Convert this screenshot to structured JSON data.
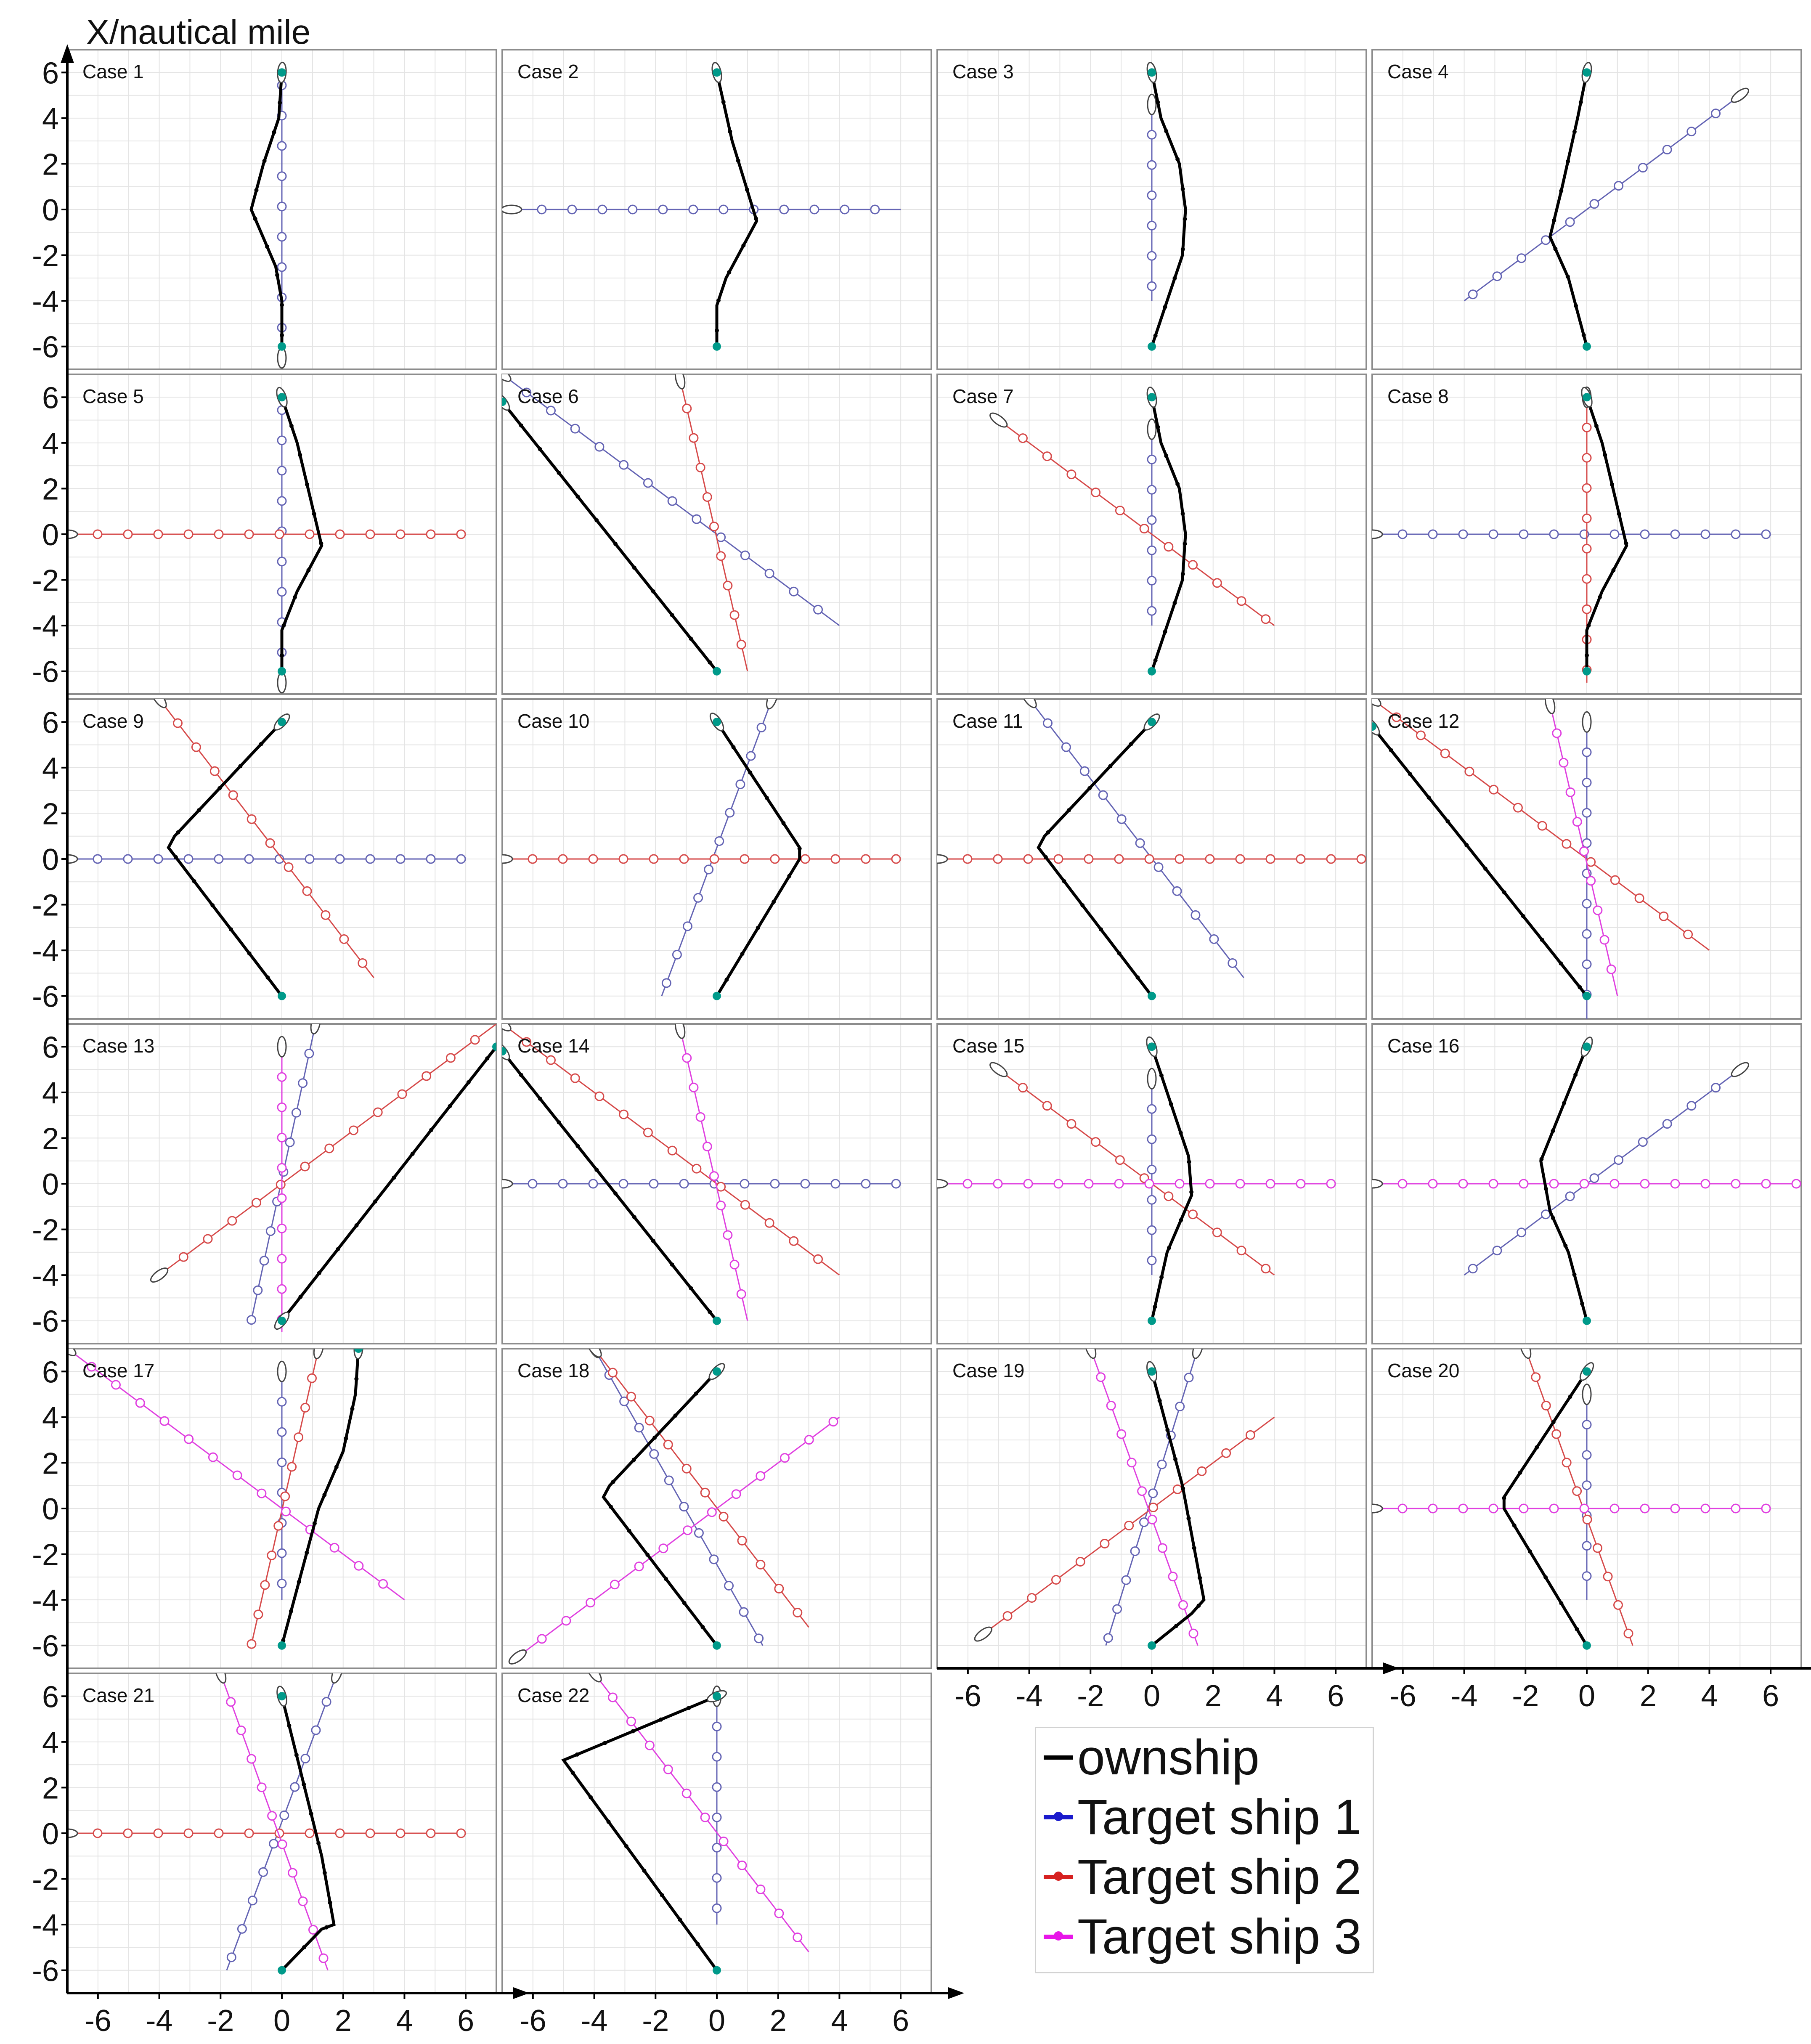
{
  "y_axis_title": "X/nautical mile",
  "legend": [
    {
      "label": "ownship",
      "color": "#000000"
    },
    {
      "label": "Target ship 1",
      "color": "#1a1acc"
    },
    {
      "label": "Target ship 2",
      "color": "#d62020"
    },
    {
      "label": "Target ship 3",
      "color": "#e815e8"
    }
  ],
  "colors": {
    "ownship": "#000000",
    "target1": "#6464b4",
    "target2": "#d64a4a",
    "target3": "#e040e0",
    "start": "#009a8a",
    "grid": "#e4e4e4"
  },
  "axis_ticks": {
    "x": [
      "-6",
      "-4",
      "-2",
      "0",
      "2",
      "4",
      "6"
    ],
    "y": [
      "6",
      "4",
      "2",
      "0",
      "-2",
      "-4",
      "-6"
    ]
  },
  "chart_data": {
    "type": "line",
    "xlim": [
      -7,
      7
    ],
    "ylim": [
      -7,
      7
    ],
    "grid": true,
    "legend_position": "bottom-right",
    "point_format": "[horizontal axis value, X/nautical mile]",
    "panels": [
      {
        "label": "Case 1",
        "ownship": [
          [
            0,
            6
          ],
          [
            -0.1,
            4
          ],
          [
            -0.6,
            2
          ],
          [
            -1,
            0
          ],
          [
            -0.2,
            -2.5
          ],
          [
            0,
            -4
          ],
          [
            0,
            -6
          ]
        ],
        "target1": [
          [
            0,
            -6.5
          ],
          [
            0,
            5.5
          ]
        ]
      },
      {
        "label": "Case 2",
        "ownship": [
          [
            0,
            6
          ],
          [
            0.5,
            3
          ],
          [
            1.3,
            -0.5
          ],
          [
            0.3,
            -3
          ],
          [
            0,
            -4.2
          ],
          [
            0,
            -6
          ]
        ],
        "target1": [
          [
            -6.7,
            0
          ],
          [
            6,
            0
          ]
        ]
      },
      {
        "label": "Case 3",
        "ownship": [
          [
            0,
            6
          ],
          [
            0.3,
            4
          ],
          [
            0.9,
            2
          ],
          [
            1.1,
            0
          ],
          [
            1,
            -2
          ],
          [
            0.5,
            -4
          ],
          [
            0,
            -6
          ]
        ],
        "target1": [
          [
            0,
            4.6
          ],
          [
            0,
            -4
          ]
        ]
      },
      {
        "label": "Case 4",
        "ownship": [
          [
            0,
            6
          ],
          [
            -0.3,
            4
          ],
          [
            -0.8,
            1
          ],
          [
            -1.2,
            -1.2
          ],
          [
            -0.6,
            -3
          ],
          [
            0,
            -6
          ]
        ],
        "target1": [
          [
            5,
            5
          ],
          [
            -4,
            -4
          ]
        ]
      },
      {
        "label": "Case 5",
        "ownship": [
          [
            0,
            6
          ],
          [
            0.5,
            4
          ],
          [
            1.3,
            -0.5
          ],
          [
            0.5,
            -2.5
          ],
          [
            0,
            -4.2
          ],
          [
            0,
            -6
          ]
        ],
        "target1": [
          [
            0,
            -6.5
          ],
          [
            0,
            5.5
          ]
        ],
        "target2": [
          [
            -7,
            0
          ],
          [
            6,
            0
          ]
        ]
      },
      {
        "label": "Case 6",
        "ownship": [
          [
            -7,
            5.8
          ],
          [
            0,
            -6
          ]
        ],
        "target1": [
          [
            -7,
            7
          ],
          [
            4,
            -4
          ]
        ],
        "target2": [
          [
            -1.2,
            6.8
          ],
          [
            1,
            -6
          ]
        ]
      },
      {
        "label": "Case 7",
        "ownship": [
          [
            0,
            6
          ],
          [
            0.3,
            4
          ],
          [
            0.9,
            2
          ],
          [
            1.1,
            0
          ],
          [
            1,
            -2
          ],
          [
            0.5,
            -4
          ],
          [
            0,
            -6
          ]
        ],
        "target1": [
          [
            0,
            4.6
          ],
          [
            0,
            -4
          ]
        ],
        "target2": [
          [
            -5,
            5
          ],
          [
            4,
            -4
          ]
        ]
      },
      {
        "label": "Case 8",
        "ownship": [
          [
            0,
            6
          ],
          [
            0.5,
            4
          ],
          [
            1.3,
            -0.5
          ],
          [
            0.5,
            -2.5
          ],
          [
            0,
            -4.2
          ],
          [
            0,
            -6
          ]
        ],
        "target1": [
          [
            -7,
            0
          ],
          [
            6,
            0
          ]
        ],
        "target2": [
          [
            0,
            6
          ],
          [
            0,
            -6.5
          ]
        ]
      },
      {
        "label": "Case 9",
        "ownship": [
          [
            0,
            6
          ],
          [
            -3.5,
            1
          ],
          [
            -3.7,
            0.5
          ],
          [
            0,
            -6
          ]
        ],
        "target1": [
          [
            -7,
            0
          ],
          [
            6,
            0
          ]
        ],
        "target2": [
          [
            -4,
            7
          ],
          [
            3,
            -5.2
          ]
        ]
      },
      {
        "label": "Case 10",
        "ownship": [
          [
            0,
            6
          ],
          [
            2.7,
            0.5
          ],
          [
            2.7,
            0
          ],
          [
            0,
            -6
          ]
        ],
        "target1": [
          [
            1.8,
            7
          ],
          [
            -1.8,
            -6
          ]
        ],
        "target2": [
          [
            -7,
            0
          ],
          [
            6,
            0
          ]
        ]
      },
      {
        "label": "Case 11",
        "ownship": [
          [
            0,
            6
          ],
          [
            -3.5,
            1
          ],
          [
            -3.7,
            0.5
          ],
          [
            0,
            -6
          ]
        ],
        "target1": [
          [
            -4,
            7
          ],
          [
            3,
            -5.2
          ]
        ],
        "target2": [
          [
            -7,
            0
          ],
          [
            7,
            0
          ]
        ]
      },
      {
        "label": "Case 12",
        "ownship": [
          [
            -7,
            5.8
          ],
          [
            0,
            -6
          ]
        ],
        "target1": [
          [
            0,
            6
          ],
          [
            0,
            -7
          ]
        ],
        "target2": [
          [
            -7,
            7
          ],
          [
            4,
            -4
          ]
        ],
        "target3": [
          [
            -1.2,
            6.8
          ],
          [
            1,
            -6
          ]
        ]
      },
      {
        "label": "Case 13",
        "ownship": [
          [
            0,
            -6
          ],
          [
            7,
            6
          ]
        ],
        "target1": [
          [
            1.1,
            7
          ],
          [
            -1,
            -6
          ]
        ],
        "target2": [
          [
            -4,
            -4
          ],
          [
            7,
            7
          ]
        ],
        "target3": [
          [
            0,
            6
          ],
          [
            0,
            -6.5
          ]
        ]
      },
      {
        "label": "Case 14",
        "ownship": [
          [
            -7,
            5.8
          ],
          [
            0,
            -6
          ]
        ],
        "target1": [
          [
            -7,
            0
          ],
          [
            6,
            0
          ]
        ],
        "target2": [
          [
            -7,
            7
          ],
          [
            4,
            -4
          ]
        ],
        "target3": [
          [
            -1.2,
            6.8
          ],
          [
            1,
            -6
          ]
        ]
      },
      {
        "label": "Case 15",
        "ownship": [
          [
            0,
            6
          ],
          [
            0.5,
            4
          ],
          [
            1.2,
            1.2
          ],
          [
            1.3,
            -0.5
          ],
          [
            0.5,
            -3
          ],
          [
            0,
            -6
          ]
        ],
        "target1": [
          [
            0,
            4.6
          ],
          [
            0,
            -4
          ]
        ],
        "target2": [
          [
            -5,
            5
          ],
          [
            4,
            -4
          ]
        ],
        "target3": [
          [
            -7,
            0
          ],
          [
            6,
            0
          ]
        ]
      },
      {
        "label": "Case 16",
        "ownship": [
          [
            0,
            6
          ],
          [
            -1.5,
            1
          ],
          [
            -1.2,
            -1.2
          ],
          [
            -0.6,
            -3
          ],
          [
            0,
            -6
          ]
        ],
        "target1": [
          [
            5,
            5
          ],
          [
            -4,
            -4
          ]
        ],
        "target3": [
          [
            -7,
            0
          ],
          [
            7,
            0
          ]
        ]
      },
      {
        "label": "Case 17",
        "ownship": [
          [
            2.5,
            7
          ],
          [
            2.4,
            5
          ],
          [
            2,
            2.5
          ],
          [
            1.2,
            0
          ],
          [
            0,
            -6
          ]
        ],
        "target1": [
          [
            0,
            6
          ],
          [
            0,
            -4
          ]
        ],
        "target2": [
          [
            1.2,
            7
          ],
          [
            -1,
            -6
          ]
        ],
        "target3": [
          [
            -7,
            7
          ],
          [
            4,
            -4
          ]
        ]
      },
      {
        "label": "Case 18",
        "ownship": [
          [
            0,
            6
          ],
          [
            -3.5,
            1
          ],
          [
            -3.7,
            0.5
          ],
          [
            0,
            -6
          ]
        ],
        "target1": [
          [
            -4,
            7
          ],
          [
            1.5,
            -6
          ]
        ],
        "target2": [
          [
            -4,
            7
          ],
          [
            3,
            -5.2
          ]
        ],
        "target3": [
          [
            -6.5,
            -6.5
          ],
          [
            4,
            4
          ]
        ]
      },
      {
        "label": "Case 19",
        "ownship": [
          [
            0,
            6
          ],
          [
            1,
            1
          ],
          [
            1.7,
            -4
          ],
          [
            1.3,
            -4.6
          ],
          [
            0,
            -6
          ]
        ],
        "target1": [
          [
            1.5,
            7
          ],
          [
            -1.5,
            -6
          ]
        ],
        "target2": [
          [
            -5.5,
            -5.5
          ],
          [
            4,
            4
          ]
        ],
        "target3": [
          [
            -2,
            7
          ],
          [
            1.5,
            -6
          ]
        ]
      },
      {
        "label": "Case 20",
        "ownship": [
          [
            0,
            6
          ],
          [
            -2.7,
            0.5
          ],
          [
            -2.7,
            0
          ],
          [
            0,
            -6
          ]
        ],
        "target1": [
          [
            0,
            5
          ],
          [
            0,
            -4
          ]
        ],
        "target2": [
          [
            -2,
            7
          ],
          [
            1.5,
            -6
          ]
        ],
        "target3": [
          [
            -7,
            0
          ],
          [
            6,
            0
          ]
        ]
      },
      {
        "label": "Case 21",
        "ownship": [
          [
            0,
            6
          ],
          [
            1.3,
            -1
          ],
          [
            1.7,
            -4
          ],
          [
            1.3,
            -4.2
          ],
          [
            0,
            -6
          ]
        ],
        "target1": [
          [
            1.8,
            7
          ],
          [
            -1.8,
            -6
          ]
        ],
        "target2": [
          [
            -7,
            0
          ],
          [
            6,
            0
          ]
        ],
        "target3": [
          [
            -2,
            7
          ],
          [
            1.5,
            -6
          ]
        ]
      },
      {
        "label": "Case 22",
        "ownship": [
          [
            0,
            6
          ],
          [
            -5,
            3.2
          ],
          [
            0,
            -6
          ]
        ],
        "target1": [
          [
            0,
            6
          ],
          [
            0,
            -4
          ]
        ],
        "target3": [
          [
            -4,
            7
          ],
          [
            3,
            -5.2
          ]
        ]
      }
    ]
  }
}
